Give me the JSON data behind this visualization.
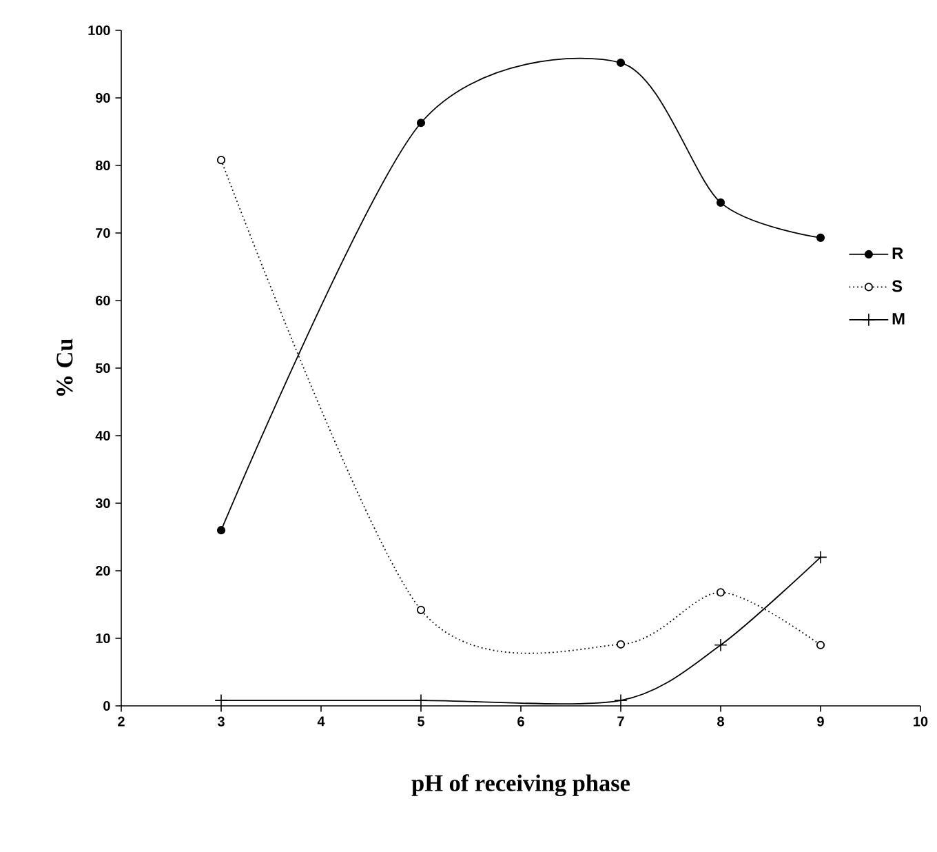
{
  "chart_data": {
    "type": "line",
    "xlabel": "pH of receiving phase",
    "ylabel": "% Cu",
    "xlim": [
      2,
      10
    ],
    "xticks": [
      2,
      3,
      4,
      5,
      6,
      7,
      8,
      9,
      10
    ],
    "ylim": [
      0,
      100
    ],
    "yticks": [
      0,
      10,
      20,
      30,
      40,
      50,
      60,
      70,
      80,
      90,
      100
    ],
    "grid": false,
    "legend": "right",
    "series": [
      {
        "name": "R",
        "color": "#000000",
        "marker": "circle",
        "line_style": "solid",
        "x": [
          3,
          5,
          7,
          8,
          9
        ],
        "values": [
          26,
          86.3,
          95.2,
          74.5,
          69.3
        ]
      },
      {
        "name": "S",
        "color": "#000000",
        "marker": "circle",
        "line_style": "dotted",
        "x": [
          3,
          5,
          7,
          8,
          9
        ],
        "values": [
          80.8,
          14.2,
          9.1,
          16.8,
          9
        ]
      },
      {
        "name": "M",
        "color": "#000000",
        "marker": "cross",
        "line_style": "solid",
        "x": [
          3,
          5,
          7,
          8,
          9
        ],
        "values": [
          0.8,
          0.8,
          0.8,
          9,
          22
        ]
      }
    ]
  }
}
